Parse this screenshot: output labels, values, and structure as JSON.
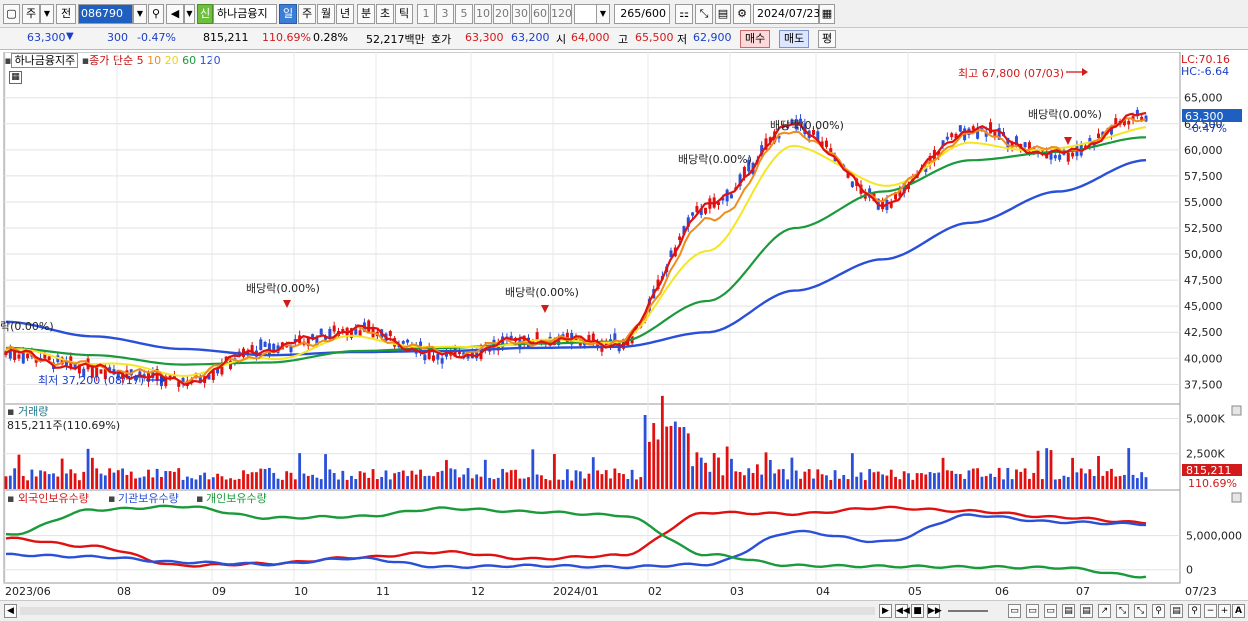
{
  "toolbar": {
    "tab_main": "주",
    "prev_label": "전",
    "code": "086790",
    "badge_new": "신",
    "stock_name": "하나금융지",
    "periods": [
      "일",
      "주",
      "월",
      "년",
      "분",
      "초",
      "틱"
    ],
    "active_period": "일",
    "intervals": [
      "1",
      "3",
      "5",
      "10",
      "20",
      "30",
      "60",
      "120"
    ],
    "count": "265",
    "count_total": "/600",
    "date": "2024/07/23"
  },
  "info": {
    "price": "63,300",
    "down_arrow": "▼",
    "change": "300",
    "change_pct": "-0.47%",
    "volume": "815,211",
    "volume_ratio": "110.69%",
    "turnover_pct": "0.28%",
    "amount": "52,217백만",
    "quote_label": "호가",
    "ask": "63,300",
    "bid": "63,200",
    "open_label": "시",
    "open": "64,000",
    "high_label": "고",
    "high": "65,500",
    "low_label": "저",
    "low": "62,900",
    "buy_button": "매수",
    "sell_button": "매도",
    "even_button": "평"
  },
  "price_pane": {
    "title": "하나금융지주",
    "ma_label": "종가 단순",
    "ma_periods": [
      "5",
      "10",
      "20",
      "60",
      "120"
    ],
    "ma_colors": [
      "#e01010",
      "#f08c1c",
      "#f5e623",
      "#1b9a3c",
      "#2a4fd8"
    ],
    "lc": "LC:70.16",
    "hc": "HC:-6.64",
    "y_ticks": [
      "65,000",
      "62,500",
      "60,000",
      "57,500",
      "55,000",
      "52,500",
      "50,000",
      "47,500",
      "45,000",
      "42,500",
      "40,000",
      "37,500"
    ],
    "current_label": "63,300",
    "current_pct": "-0.47%",
    "high_annotation": "최고 67,800 (07/03)",
    "low_annotation": "최저 37,200 (08/17)",
    "dividend_labels": [
      "락(0.00%)",
      "배당락(0.00%)",
      "배당락(0.00%)",
      "배당락(0.00%)",
      "배당락(0.00%)",
      "배당락(0.00%)"
    ]
  },
  "volume_pane": {
    "title": "거래량",
    "value_text": "815,211주(110.69%)",
    "y_ticks": [
      "5,000K",
      "2,500K"
    ],
    "current_label": "815,211",
    "current_pct": "110.69%"
  },
  "holding_pane": {
    "legend": [
      "외국인보유수량",
      "기관보유수량",
      "개인보유수량"
    ],
    "legend_colors": [
      "#e01010",
      "#2a4fd8",
      "#1b9a3c"
    ],
    "y_ticks": [
      "5,000,000",
      "0"
    ]
  },
  "x_axis": {
    "labels": [
      "2023/06",
      "08",
      "09",
      "10",
      "11",
      "12",
      "2024/01",
      "02",
      "03",
      "04",
      "05",
      "06",
      "07",
      "07/23"
    ]
  },
  "chart_data": {
    "type": "line",
    "x": [
      "2023/06",
      "2023/07",
      "2023/08",
      "2023/09",
      "2023/10",
      "2023/11",
      "2023/12",
      "2024/01",
      "2024/02",
      "2024/03",
      "2024/04",
      "2024/05",
      "2024/06",
      "2024/07"
    ],
    "series": [
      {
        "name": "5",
        "values": [
          40500,
          39000,
          37800,
          41000,
          42800,
          40200,
          41800,
          41500,
          54500,
          62300,
          55000,
          62000,
          59500,
          63300
        ]
      },
      {
        "name": "10",
        "values": [
          40600,
          39200,
          38100,
          40600,
          42500,
          40500,
          41700,
          41600,
          53000,
          61800,
          55500,
          61500,
          59800,
          63000
        ]
      },
      {
        "name": "20",
        "values": [
          40800,
          39600,
          38500,
          40000,
          42000,
          40900,
          41600,
          41700,
          50500,
          60500,
          56500,
          60500,
          60000,
          62200
        ]
      },
      {
        "name": "60",
        "values": [
          41000,
          40300,
          39400,
          39600,
          40700,
          41000,
          41400,
          41600,
          45500,
          52500,
          56000,
          59000,
          59800,
          61200
        ]
      },
      {
        "name": "120",
        "values": [
          43500,
          42100,
          40900,
          40300,
          40600,
          40700,
          41000,
          41100,
          42500,
          46500,
          49500,
          53000,
          56000,
          59000
        ]
      }
    ],
    "ylim": [
      36000,
      69000
    ]
  }
}
